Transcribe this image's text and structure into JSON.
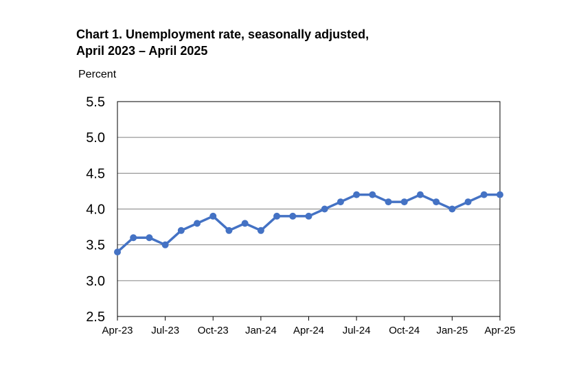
{
  "chart_data": {
    "type": "line",
    "title": "Chart 1. Unemployment rate, seasonally adjusted,",
    "subtitle": "April 2023 – April 2025",
    "ylabel": "Percent",
    "xlabel": "",
    "ylim": [
      2.5,
      5.5
    ],
    "yticks": [
      "2.5",
      "3.0",
      "3.5",
      "4.0",
      "4.5",
      "5.0",
      "5.5"
    ],
    "x": [
      "Apr-23",
      "May-23",
      "Jun-23",
      "Jul-23",
      "Aug-23",
      "Sep-23",
      "Oct-23",
      "Nov-23",
      "Dec-23",
      "Jan-24",
      "Feb-24",
      "Mar-24",
      "Apr-24",
      "May-24",
      "Jun-24",
      "Jul-24",
      "Aug-24",
      "Sep-24",
      "Oct-24",
      "Nov-24",
      "Dec-24",
      "Jan-25",
      "Feb-25",
      "Mar-25",
      "Apr-25"
    ],
    "xtick_labels": [
      "Apr-23",
      "Jul-23",
      "Oct-23",
      "Jan-24",
      "Apr-24",
      "Jul-24",
      "Oct-24",
      "Jan-25",
      "Apr-25"
    ],
    "series": [
      {
        "values": [
          3.4,
          3.6,
          3.6,
          3.5,
          3.7,
          3.8,
          3.9,
          3.7,
          3.8,
          3.7,
          3.9,
          3.9,
          3.9,
          4.0,
          4.1,
          4.2,
          4.2,
          4.1,
          4.1,
          4.2,
          4.1,
          4.0,
          4.1,
          4.2,
          4.2
        ],
        "color": "#4472C4"
      }
    ],
    "grid": true,
    "legend": "none"
  }
}
